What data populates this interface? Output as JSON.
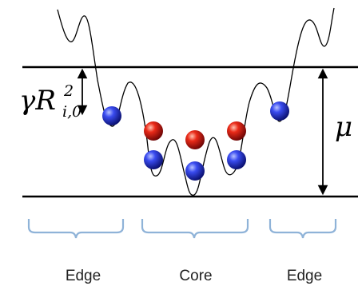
{
  "diagram": {
    "left_symbol": {
      "base": "γR",
      "sup": "2",
      "sub": "i,0"
    },
    "right_symbol": "μ",
    "regions": [
      {
        "label": "Edge"
      },
      {
        "label": "Core"
      },
      {
        "label": "Edge"
      }
    ],
    "wells": [
      {
        "position": "left-edge",
        "particles": [
          "blue"
        ]
      },
      {
        "position": "core-left",
        "particles": [
          "blue",
          "red"
        ]
      },
      {
        "position": "core-center",
        "particles": [
          "blue",
          "red"
        ]
      },
      {
        "position": "core-right",
        "particles": [
          "blue",
          "red"
        ]
      },
      {
        "position": "right-edge",
        "particles": [
          "blue"
        ]
      }
    ],
    "colors": {
      "blue_particle": "#1f2fd6",
      "red_particle": "#d81e1e",
      "bracket": "#8fb3d8",
      "lines": "#000000"
    }
  }
}
